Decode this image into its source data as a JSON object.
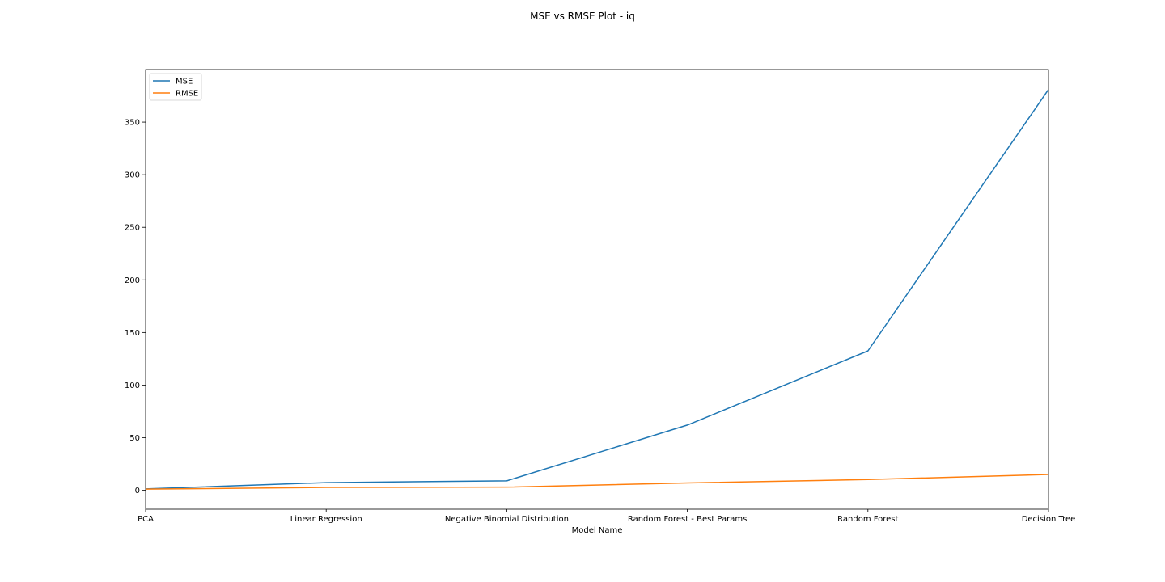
{
  "chart_data": {
    "type": "line",
    "title": "MSE vs RMSE Plot - iq",
    "xlabel": "Model Name",
    "ylabel": "",
    "categories": [
      "PCA",
      "Linear Regression",
      "Negative Binomial Distribution",
      "Random Forest - Best Params",
      "Random Forest",
      "Decision Tree"
    ],
    "series": [
      {
        "name": "MSE",
        "color": "#1f77b4",
        "values": [
          1.3,
          7.3,
          9.0,
          62.0,
          132.5,
          381.0
        ]
      },
      {
        "name": "RMSE",
        "color": "#ff7f0e",
        "values": [
          1.1,
          2.7,
          3.0,
          7.0,
          10.2,
          15.0
        ]
      }
    ],
    "yticks": [
      0,
      50,
      100,
      150,
      200,
      250,
      300,
      350
    ],
    "ylim": [
      -18,
      400
    ],
    "grid": false,
    "legend_position": "top-left"
  }
}
